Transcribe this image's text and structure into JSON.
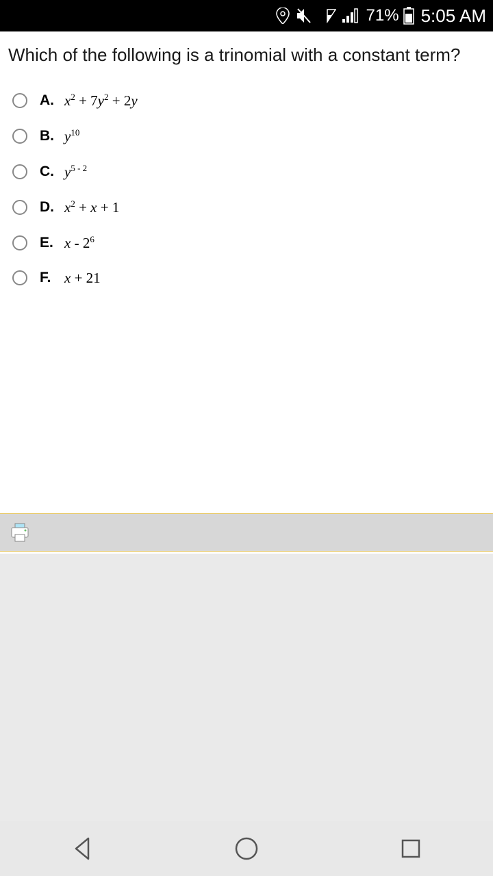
{
  "status": {
    "battery_pct": "71%",
    "time": "5:05 AM"
  },
  "question": "Which of the following is a trinomial with a constant term?",
  "options": [
    {
      "letter": "A.",
      "expr_html": "<i>x</i><sup>2</sup> <span class='op'>+ 7</span><i>y</i><sup>2</sup> <span class='op'>+ 2</span><i>y</i>"
    },
    {
      "letter": "B.",
      "expr_html": "<i>y</i><sup>10</sup>"
    },
    {
      "letter": "C.",
      "expr_html": "<i>y</i><sup>5 - 2</sup>"
    },
    {
      "letter": "D.",
      "expr_html": "<i>x</i><sup>2</sup> <span class='op'>+</span> <i>x</i> <span class='op'>+ 1</span>"
    },
    {
      "letter": "E.",
      "expr_html": "<i>x</i> <span class='op'>- 2</span><sup>6</sup>"
    },
    {
      "letter": "F.",
      "expr_html": "<i>x</i> <span class='op'>+ 21</span>"
    }
  ],
  "colors": {
    "status_bg": "#000000",
    "toolbar_bg": "#d7d7d7",
    "toolbar_border": "#e6c55e",
    "spacer_bg": "#eaeaea",
    "nav_bg": "#e8e8e8",
    "radio_border": "#888888",
    "text": "#1a1a1a"
  }
}
